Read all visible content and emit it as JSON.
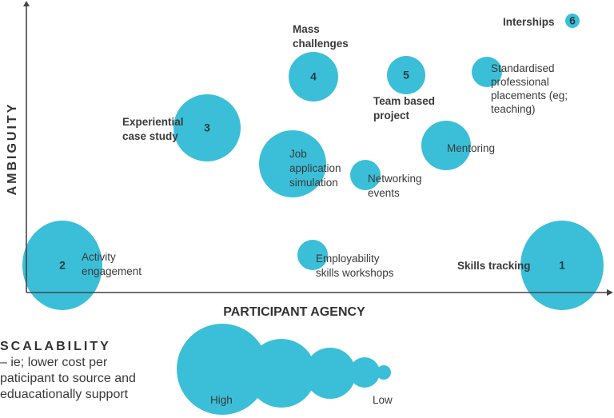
{
  "colors": {
    "bubble": "#3bbfd8",
    "axis": "#444444",
    "text": "#3a3a3a"
  },
  "axes": {
    "y_label": "AMBIGUITY",
    "x_label": "PARTICIPANT AGENCY"
  },
  "bubbles": [
    {
      "number": "",
      "label": [
        "Activity",
        "engagement"
      ],
      "number_text": "2"
    },
    {
      "number_text": "1",
      "label": [
        "Skills tracking"
      ]
    },
    {
      "number_text": "",
      "label": [
        "Employability",
        "skills workshops"
      ]
    },
    {
      "number_text": "",
      "label": [
        "Job",
        "application",
        "simulation"
      ]
    },
    {
      "number_text": "3",
      "label": [
        "Experiential",
        "case study"
      ]
    },
    {
      "number_text": "4",
      "label": [
        "Mass",
        "challenges"
      ]
    },
    {
      "number_text": "5",
      "label": [
        "Team based",
        "project"
      ]
    },
    {
      "number_text": "",
      "label": [
        "Standardised",
        "professional",
        "placements (eg;",
        "teaching)"
      ]
    },
    {
      "number_text": "",
      "label": [
        "Mentoring"
      ]
    },
    {
      "number_text": "",
      "label": [
        "Networking",
        "events"
      ]
    },
    {
      "number_text": "6",
      "label": [
        "Interships"
      ]
    }
  ],
  "legend": {
    "title": "SCALABILITY",
    "description": [
      "– ie;  lower cost per",
      "paticipant to source and",
      "eduacationally support"
    ],
    "high_label": "High",
    "low_label": "Low"
  }
}
